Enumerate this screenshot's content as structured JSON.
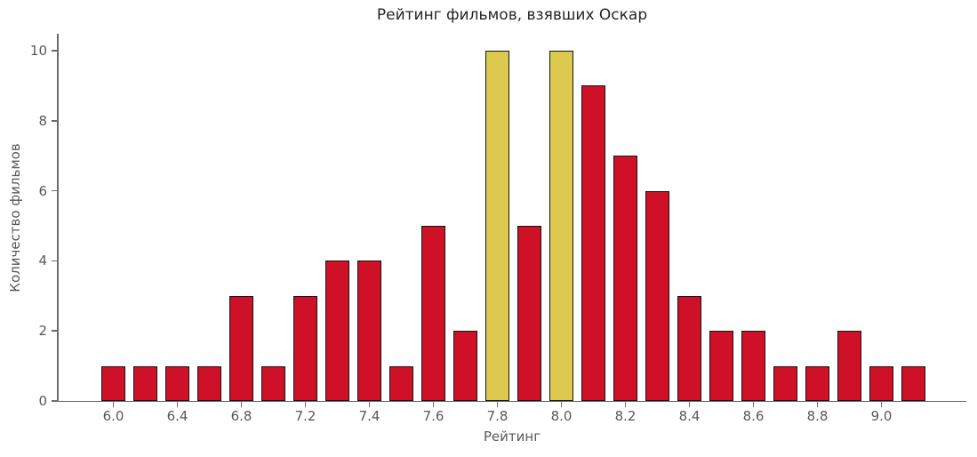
{
  "page": {
    "background": "#ffffff"
  },
  "chart_data": {
    "type": "bar",
    "title": "Рейтинг фильмов, взявших Оскар",
    "xlabel": "Рейтинг",
    "ylabel": "Количество фильмов",
    "ylim": [
      0,
      10.5
    ],
    "yticks": [
      "0",
      "2",
      "4",
      "6",
      "8",
      "10"
    ],
    "categories": [
      "6.0",
      "6.2",
      "6.4",
      "6.6",
      "6.8",
      "7.0",
      "7.2",
      "7.3",
      "7.4",
      "7.5",
      "7.6",
      "7.7",
      "7.8",
      "7.9",
      "8.0",
      "8.1",
      "8.2",
      "8.3",
      "8.4",
      "8.5",
      "8.6",
      "8.7",
      "8.8",
      "8.9",
      "9.0",
      "9.1"
    ],
    "values": [
      1,
      1,
      1,
      1,
      3,
      1,
      3,
      4,
      4,
      1,
      5,
      2,
      10,
      5,
      10,
      9,
      7,
      6,
      3,
      2,
      2,
      1,
      1,
      2,
      1,
      1
    ],
    "x_tick_labels": [
      "6.0",
      "6.4",
      "6.8",
      "7.2",
      "7.4",
      "7.6",
      "7.8",
      "8.0",
      "8.2",
      "8.4",
      "8.6",
      "8.8",
      "9.0"
    ],
    "x_tick_bar_indices": [
      0,
      2,
      4,
      6,
      8,
      10,
      12,
      14,
      16,
      18,
      20,
      22,
      24
    ],
    "highlighted_indices": [
      12,
      14
    ],
    "grid": false,
    "legend": false,
    "colors": {
      "bar": "#ce1126",
      "highlight": "#dcc94e",
      "bar_edge": "#141414",
      "axis": "#6b6b6b",
      "tick_label": "#595959",
      "title": "#262626",
      "background": "#ffffff"
    }
  }
}
